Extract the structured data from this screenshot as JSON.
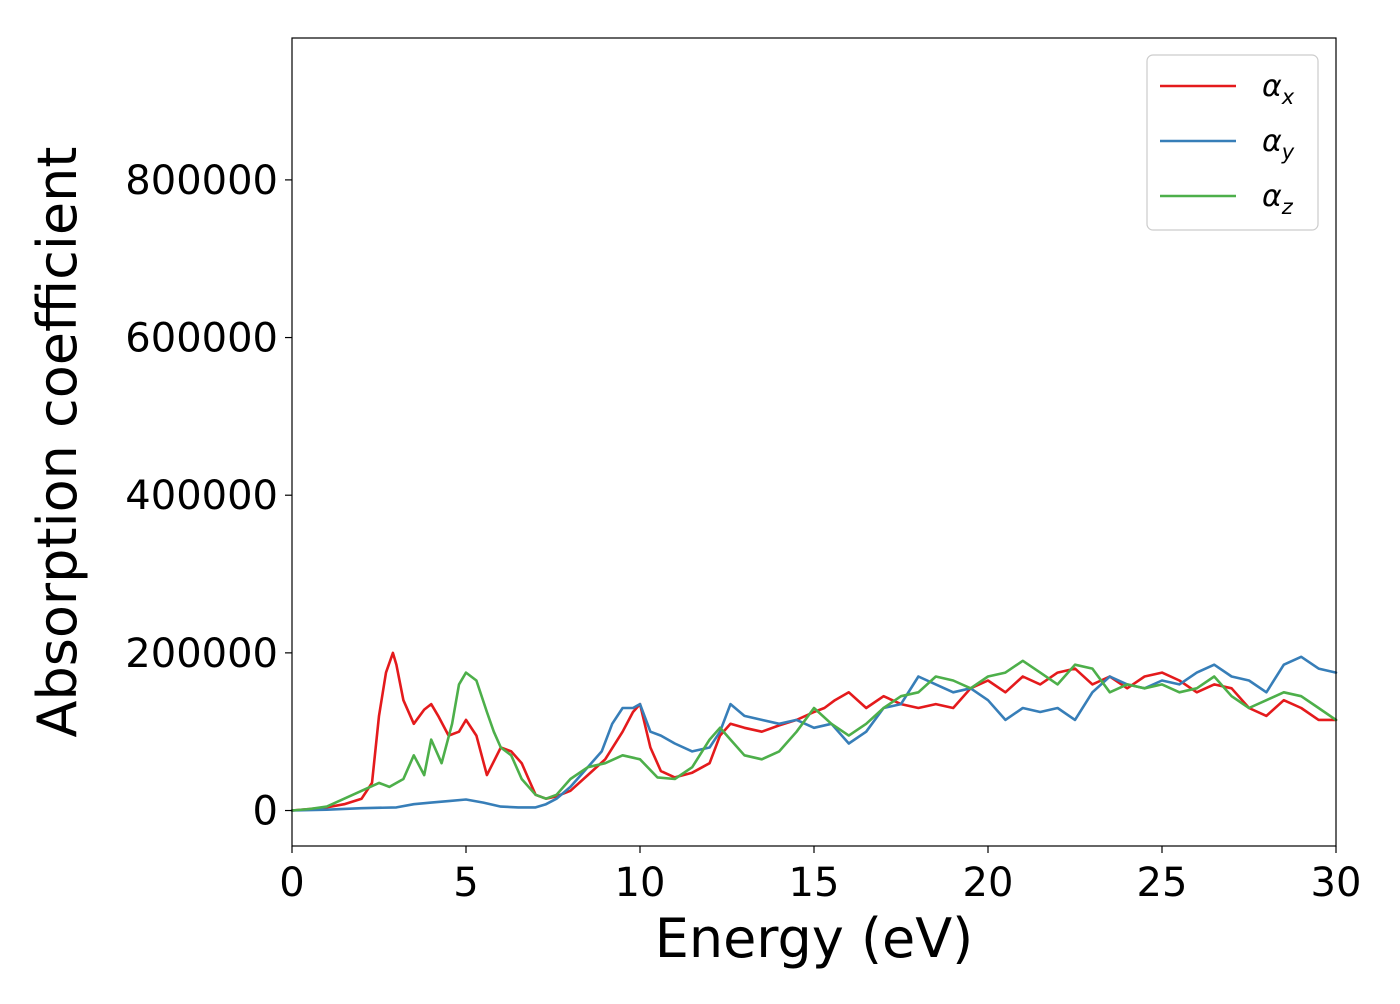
{
  "chart_data": {
    "type": "line",
    "title": "",
    "xlabel": "Energy (eV)",
    "ylabel": "Absorption coefficient",
    "xlim": [
      0,
      30
    ],
    "ylim": [
      -45000,
      980000
    ],
    "xticks": [
      0,
      5,
      10,
      15,
      20,
      25,
      30
    ],
    "yticks": [
      0,
      200000,
      400000,
      600000,
      800000
    ],
    "xtick_labels": [
      "0",
      "5",
      "10",
      "15",
      "20",
      "25",
      "30"
    ],
    "ytick_labels": [
      "0",
      "200000",
      "400000",
      "600000",
      "800000"
    ],
    "grid": false,
    "legend_position": "top-right",
    "series": [
      {
        "name": "α_x",
        "symbol": "α",
        "subscript": "x",
        "color": "#e41a1c",
        "x": [
          0,
          0.5,
          1.0,
          1.5,
          2.0,
          2.3,
          2.5,
          2.7,
          2.9,
          3.0,
          3.2,
          3.5,
          3.8,
          4.0,
          4.2,
          4.5,
          4.8,
          5.0,
          5.3,
          5.6,
          6.0,
          6.3,
          6.6,
          6.8,
          7.0,
          7.3,
          7.6,
          8.0,
          8.5,
          9.0,
          9.5,
          9.8,
          10.0,
          10.3,
          10.6,
          11.0,
          11.5,
          12.0,
          12.3,
          12.6,
          13.0,
          13.5,
          14.0,
          14.5,
          15.0,
          15.3,
          15.6,
          16.0,
          16.5,
          17.0,
          17.5,
          18.0,
          18.5,
          19.0,
          19.5,
          20.0,
          20.5,
          21.0,
          21.5,
          22.0,
          22.5,
          23.0,
          23.5,
          24.0,
          24.5,
          25.0,
          25.5,
          26.0,
          26.5,
          27.0,
          27.5,
          28.0,
          28.5,
          29.0,
          29.5,
          30.0
        ],
        "y": [
          0,
          2000,
          4000,
          8000,
          15000,
          35000,
          120000,
          175000,
          200000,
          185000,
          140000,
          110000,
          128000,
          135000,
          120000,
          95000,
          100000,
          115000,
          95000,
          45000,
          80000,
          75000,
          60000,
          40000,
          20000,
          15000,
          18000,
          25000,
          45000,
          65000,
          100000,
          125000,
          135000,
          80000,
          50000,
          42000,
          48000,
          60000,
          95000,
          110000,
          105000,
          100000,
          108000,
          115000,
          125000,
          130000,
          140000,
          150000,
          130000,
          145000,
          135000,
          130000,
          135000,
          130000,
          155000,
          165000,
          150000,
          170000,
          160000,
          175000,
          180000,
          160000,
          170000,
          155000,
          170000,
          175000,
          165000,
          150000,
          160000,
          155000,
          130000,
          120000,
          140000,
          130000,
          115000,
          115000
        ]
      },
      {
        "name": "α_y",
        "symbol": "α",
        "subscript": "y",
        "color": "#377eb8",
        "x": [
          0,
          1.0,
          2.0,
          3.0,
          3.5,
          4.0,
          4.5,
          5.0,
          5.5,
          6.0,
          6.5,
          7.0,
          7.3,
          7.6,
          8.0,
          8.3,
          8.6,
          8.9,
          9.2,
          9.5,
          9.8,
          10.0,
          10.3,
          10.6,
          11.0,
          11.5,
          12.0,
          12.3,
          12.6,
          13.0,
          13.5,
          14.0,
          14.5,
          15.0,
          15.5,
          16.0,
          16.5,
          17.0,
          17.5,
          18.0,
          18.5,
          19.0,
          19.5,
          20.0,
          20.5,
          21.0,
          21.5,
          22.0,
          22.5,
          23.0,
          23.5,
          24.0,
          24.5,
          25.0,
          25.5,
          26.0,
          26.5,
          27.0,
          27.5,
          28.0,
          28.5,
          29.0,
          29.5,
          30.0
        ],
        "y": [
          0,
          1000,
          3000,
          4000,
          8000,
          10000,
          12000,
          14000,
          10000,
          5000,
          4000,
          4000,
          8000,
          15000,
          30000,
          45000,
          60000,
          75000,
          110000,
          130000,
          130000,
          135000,
          100000,
          95000,
          85000,
          75000,
          80000,
          100000,
          135000,
          120000,
          115000,
          110000,
          115000,
          105000,
          110000,
          85000,
          100000,
          130000,
          135000,
          170000,
          160000,
          150000,
          155000,
          140000,
          115000,
          130000,
          125000,
          130000,
          115000,
          150000,
          170000,
          160000,
          155000,
          165000,
          160000,
          175000,
          185000,
          170000,
          165000,
          150000,
          185000,
          195000,
          180000,
          175000
        ]
      },
      {
        "name": "α_z",
        "symbol": "α",
        "subscript": "z",
        "color": "#4daf4a",
        "x": [
          0,
          0.5,
          1.0,
          1.5,
          2.0,
          2.5,
          2.8,
          3.2,
          3.5,
          3.8,
          4.0,
          4.3,
          4.6,
          4.8,
          5.0,
          5.3,
          5.6,
          5.8,
          6.0,
          6.3,
          6.6,
          7.0,
          7.3,
          7.6,
          8.0,
          8.5,
          9.0,
          9.5,
          10.0,
          10.5,
          11.0,
          11.5,
          12.0,
          12.3,
          12.6,
          13.0,
          13.5,
          14.0,
          14.5,
          15.0,
          15.5,
          16.0,
          16.5,
          17.0,
          17.5,
          18.0,
          18.5,
          19.0,
          19.5,
          20.0,
          20.5,
          21.0,
          21.5,
          22.0,
          22.5,
          23.0,
          23.5,
          24.0,
          24.5,
          25.0,
          25.5,
          26.0,
          26.5,
          27.0,
          27.5,
          28.0,
          28.5,
          29.0,
          29.5,
          30.0
        ],
        "y": [
          0,
          2000,
          5000,
          15000,
          25000,
          35000,
          30000,
          40000,
          70000,
          45000,
          90000,
          60000,
          110000,
          160000,
          175000,
          165000,
          125000,
          100000,
          80000,
          70000,
          40000,
          20000,
          15000,
          20000,
          40000,
          55000,
          60000,
          70000,
          65000,
          42000,
          40000,
          55000,
          90000,
          105000,
          90000,
          70000,
          65000,
          75000,
          100000,
          130000,
          110000,
          95000,
          110000,
          130000,
          145000,
          150000,
          170000,
          165000,
          155000,
          170000,
          175000,
          190000,
          175000,
          160000,
          185000,
          180000,
          150000,
          160000,
          155000,
          160000,
          150000,
          155000,
          170000,
          145000,
          130000,
          140000,
          150000,
          145000,
          130000,
          115000
        ]
      }
    ]
  }
}
